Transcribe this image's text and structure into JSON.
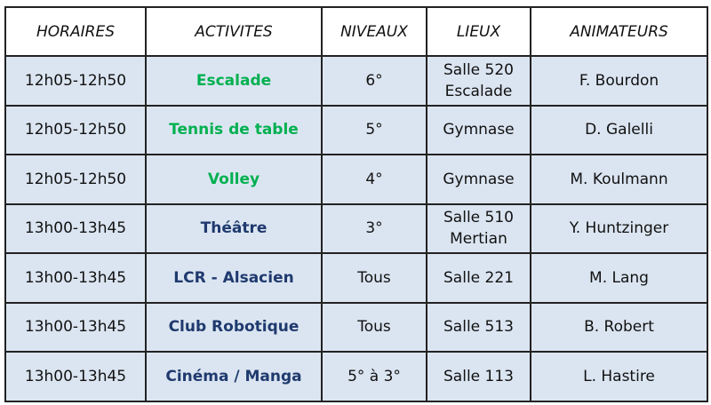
{
  "headers": [
    "HORAIRES",
    "ACTIVITES",
    "NIVEAUX",
    "LIEUX",
    "ANIMATEURS"
  ],
  "colors": {
    "green": "#00b050",
    "navy": "#1f3a6e",
    "row_bg": "#dbe5f1"
  },
  "rows": [
    {
      "horaire": "12h05-12h50",
      "activite": "Escalade",
      "color": "green",
      "niveau": "6°",
      "lieu": "Salle 520 Escalade",
      "animateur": "F. Bourdon"
    },
    {
      "horaire": "12h05-12h50",
      "activite": "Tennis de table",
      "color": "green",
      "niveau": "5°",
      "lieu": "Gymnase",
      "animateur": "D. Galelli"
    },
    {
      "horaire": "12h05-12h50",
      "activite": "Volley",
      "color": "green",
      "niveau": "4°",
      "lieu": "Gymnase",
      "animateur": "M. Koulmann"
    },
    {
      "horaire": "13h00-13h45",
      "activite": "Théâtre",
      "color": "navy",
      "niveau": "3°",
      "lieu": "Salle 510 Mertian",
      "animateur": "Y. Huntzinger"
    },
    {
      "horaire": "13h00-13h45",
      "activite": "LCR - Alsacien",
      "color": "navy",
      "niveau": "Tous",
      "lieu": "Salle 221",
      "animateur": "M. Lang"
    },
    {
      "horaire": "13h00-13h45",
      "activite": "Club Robotique",
      "color": "navy",
      "niveau": "Tous",
      "lieu": "Salle 513",
      "animateur": "B. Robert"
    },
    {
      "horaire": "13h00-13h45",
      "activite": "Cinéma / Manga",
      "color": "navy",
      "niveau": "5° à 3°",
      "lieu": "Salle 113",
      "animateur": "L. Hastire"
    }
  ]
}
